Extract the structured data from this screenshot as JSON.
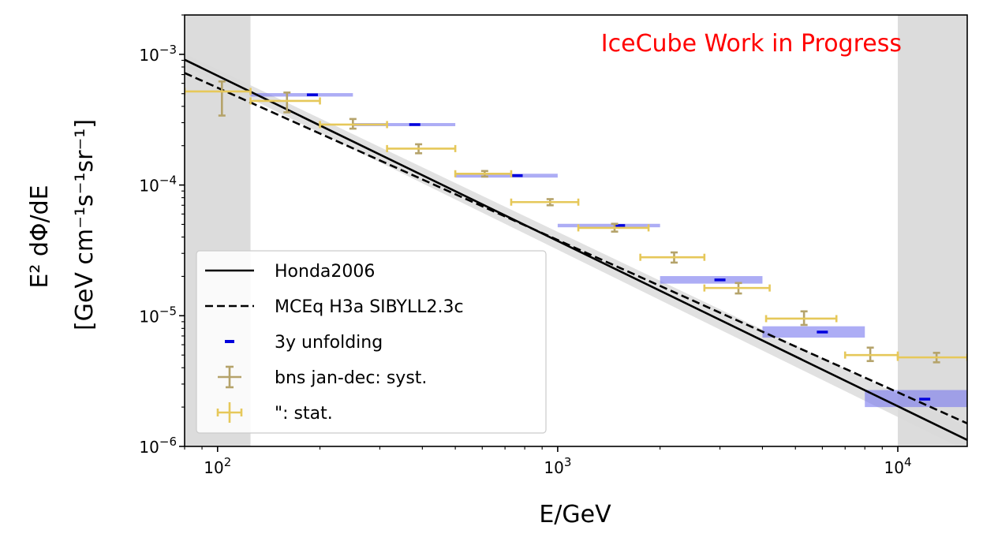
{
  "chart_data": {
    "type": "scatter",
    "annotation": "IceCube Work in Progress",
    "annotation_color": "#ff0000",
    "xlabel": "E/GeV",
    "ylabel_line1": "E² dΦ/dE",
    "ylabel_line2": "[GeV cm⁻¹s⁻¹sr⁻¹]",
    "x_scale": "log",
    "y_scale": "log",
    "xlim": [
      80,
      16000
    ],
    "ylim": [
      1e-06,
      0.002
    ],
    "x_ticks": [
      {
        "value": 100,
        "base": "10",
        "exp": "2"
      },
      {
        "value": 1000,
        "base": "10",
        "exp": "3"
      },
      {
        "value": 10000,
        "base": "10",
        "exp": "4"
      }
    ],
    "y_ticks": [
      {
        "value": 1e-06,
        "base": "10",
        "exp": "−6"
      },
      {
        "value": 1e-05,
        "base": "10",
        "exp": "−5"
      },
      {
        "value": 0.0001,
        "base": "10",
        "exp": "−4"
      },
      {
        "value": 0.001,
        "base": "10",
        "exp": "−3"
      }
    ],
    "excluded_regions": [
      [
        80,
        125
      ],
      [
        10000,
        16000
      ]
    ],
    "legend": [
      {
        "label": "Honda2006",
        "style": "solid-line"
      },
      {
        "label": "MCEq H3a SIBYLL2.3c",
        "style": "dashed-line"
      },
      {
        "label": "3y unfolding",
        "style": "blue-marker"
      },
      {
        "label": "bns jan-dec: syst.",
        "style": "syst-errorbar"
      },
      {
        "label": "\": stat.",
        "style": "stat-errorbar"
      }
    ],
    "colors": {
      "model_line": "#000000",
      "band": "#d9d9d9",
      "excluded": "#dcdcdc",
      "unfolding_marker": "#0000dd",
      "unfolding_box": "#7777ee",
      "syst": "#b5a36a",
      "stat": "#e6c85a"
    },
    "series": [
      {
        "name": "Honda2006",
        "style": "solid",
        "points": [
          [
            80,
            0.00091
          ],
          [
            16000,
            1.12e-06
          ]
        ]
      },
      {
        "name": "MCEq H3a SIBYLL2.3c",
        "style": "dashed",
        "points": [
          [
            80,
            0.00072
          ],
          [
            16000,
            1.5e-06
          ]
        ]
      },
      {
        "name": "model uncertainty band",
        "style": "band",
        "upper": [
          [
            80,
            0.00101
          ],
          [
            16000,
            1.4e-06
          ]
        ],
        "lower": [
          [
            80,
            0.00081
          ],
          [
            16000,
            9.2e-07
          ]
        ]
      },
      {
        "name": "3y unfolding",
        "points": [
          {
            "x": 190,
            "y": 0.00049,
            "xmin": 125,
            "xmax": 250,
            "ylo": 0.000475,
            "yhi": 0.000505
          },
          {
            "x": 380,
            "y": 0.00029,
            "xmin": 250,
            "xmax": 500,
            "ylo": 0.000282,
            "yhi": 0.000298
          },
          {
            "x": 760,
            "y": 0.000118,
            "xmin": 500,
            "xmax": 1000,
            "ylo": 0.000114,
            "yhi": 0.000122
          },
          {
            "x": 1520,
            "y": 4.9e-05,
            "xmin": 1000,
            "xmax": 2000,
            "ylo": 4.75e-05,
            "yhi": 5.05e-05
          },
          {
            "x": 3000,
            "y": 1.88e-05,
            "xmin": 2000,
            "xmax": 4000,
            "ylo": 1.76e-05,
            "yhi": 2.01e-05
          },
          {
            "x": 6000,
            "y": 7.5e-06,
            "xmin": 4000,
            "xmax": 8000,
            "ylo": 6.8e-06,
            "yhi": 8.3e-06
          },
          {
            "x": 12000,
            "y": 2.3e-06,
            "xmin": 8000,
            "xmax": 16000,
            "ylo": 2e-06,
            "yhi": 2.7e-06
          }
        ]
      },
      {
        "name": "bns jan-dec: syst.",
        "points": [
          {
            "x": 103,
            "y": 0.00052,
            "ylo": 0.00034,
            "yhi": 0.00062
          },
          {
            "x": 160,
            "y": 0.00044,
            "ylo": 0.00036,
            "yhi": 0.00051
          },
          {
            "x": 250,
            "y": 0.00029,
            "ylo": 0.00027,
            "yhi": 0.00032
          },
          {
            "x": 390,
            "y": 0.00019,
            "ylo": 0.000175,
            "yhi": 0.000205
          },
          {
            "x": 610,
            "y": 0.000122,
            "ylo": 0.000116,
            "yhi": 0.000128
          },
          {
            "x": 950,
            "y": 7.4e-05,
            "ylo": 7e-05,
            "yhi": 7.8e-05
          },
          {
            "x": 1470,
            "y": 4.7e-05,
            "ylo": 4.4e-05,
            "yhi": 5.05e-05
          },
          {
            "x": 2200,
            "y": 2.8e-05,
            "ylo": 2.55e-05,
            "yhi": 3.05e-05
          },
          {
            "x": 3400,
            "y": 1.63e-05,
            "ylo": 1.48e-05,
            "yhi": 1.78e-05
          },
          {
            "x": 5300,
            "y": 9.5e-06,
            "ylo": 8.5e-06,
            "yhi": 1.08e-05
          },
          {
            "x": 8300,
            "y": 5e-06,
            "ylo": 4.5e-06,
            "yhi": 5.7e-06
          },
          {
            "x": 13000,
            "y": 4.8e-06,
            "ylo": 4.4e-06,
            "yhi": 5.2e-06
          }
        ]
      },
      {
        "name": "\": stat.",
        "points": [
          {
            "x": 103,
            "y": 0.00052,
            "xmin": 80,
            "xmax": 125
          },
          {
            "x": 160,
            "y": 0.00044,
            "xmin": 125,
            "xmax": 200
          },
          {
            "x": 250,
            "y": 0.00029,
            "xmin": 200,
            "xmax": 315
          },
          {
            "x": 390,
            "y": 0.00019,
            "xmin": 315,
            "xmax": 500
          },
          {
            "x": 610,
            "y": 0.000122,
            "xmin": 500,
            "xmax": 730
          },
          {
            "x": 950,
            "y": 7.4e-05,
            "xmin": 730,
            "xmax": 1150
          },
          {
            "x": 1470,
            "y": 4.7e-05,
            "xmin": 1150,
            "xmax": 1850
          },
          {
            "x": 2200,
            "y": 2.8e-05,
            "xmin": 1750,
            "xmax": 2700
          },
          {
            "x": 3400,
            "y": 1.63e-05,
            "xmin": 2700,
            "xmax": 4200
          },
          {
            "x": 5300,
            "y": 9.5e-06,
            "xmin": 4100,
            "xmax": 6600
          },
          {
            "x": 8300,
            "y": 5e-06,
            "xmin": 7000,
            "xmax": 10000
          },
          {
            "x": 13000,
            "y": 4.8e-06,
            "xmin": 10000,
            "xmax": 16000
          }
        ]
      }
    ]
  }
}
